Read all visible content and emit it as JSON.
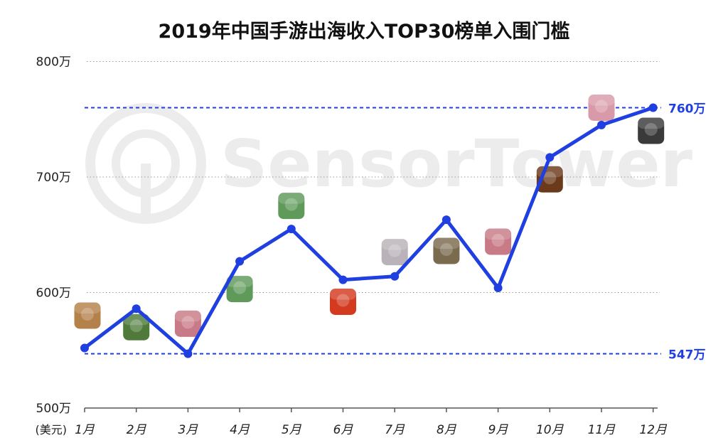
{
  "chart_data": {
    "type": "line",
    "title": "2019年中国手游出海收入TOP30榜单入围门槛",
    "ylabel": "(美元)",
    "categories": [
      "1月",
      "2月",
      "3月",
      "4月",
      "5月",
      "6月",
      "7月",
      "8月",
      "9月",
      "10月",
      "11月",
      "12月"
    ],
    "yticks": [
      {
        "value": 500,
        "label": "500万"
      },
      {
        "value": 600,
        "label": "600万"
      },
      {
        "value": 700,
        "label": "700万"
      },
      {
        "value": 800,
        "label": "800万"
      }
    ],
    "ylim": [
      500,
      800
    ],
    "series": [
      {
        "values": [
          552,
          586,
          547,
          627,
          655,
          611,
          614,
          663,
          604,
          717,
          745,
          760
        ],
        "color": "#1f3fe0"
      }
    ],
    "reference_lines": [
      {
        "value": 760,
        "label": "760万",
        "color": "#1f3fe0"
      },
      {
        "value": 547,
        "label": "547万",
        "color": "#1f3fe0"
      }
    ],
    "grid": true,
    "watermark": "SensorTower",
    "game_icons": [
      {
        "month_index": 0,
        "value": 580,
        "icon": "game-icon-heroes-portrait",
        "color": "#b5814a"
      },
      {
        "month_index": 1,
        "value": 570,
        "icon": "game-icon-army-soldier",
        "color": "#4f7a3a"
      },
      {
        "month_index": 2,
        "value": 573,
        "icon": "game-icon-chapters",
        "color": "#c97a87"
      },
      {
        "month_index": 3,
        "value": 603,
        "icon": "game-icon-summoners-war",
        "color": "#5f9a5a"
      },
      {
        "month_index": 4,
        "value": 675,
        "icon": "game-icon-summoners-war",
        "color": "#5f9a5a"
      },
      {
        "month_index": 5,
        "value": 592,
        "icon": "game-icon-mu-origin",
        "color": "#d33a1f"
      },
      {
        "month_index": 6,
        "value": 635,
        "icon": "game-icon-anime-girl",
        "color": "#b9b2b8"
      },
      {
        "month_index": 7,
        "value": 636,
        "icon": "game-icon-soldier-face",
        "color": "#7a6a4e"
      },
      {
        "month_index": 8,
        "value": 644,
        "icon": "game-icon-chapters",
        "color": "#c97a87"
      },
      {
        "month_index": 9,
        "value": 698,
        "icon": "game-icon-dark-fantasy",
        "color": "#6a3a1a"
      },
      {
        "month_index": 10,
        "value": 760,
        "icon": "game-icon-pink-hair-girl",
        "color": "#d89aa8"
      },
      {
        "month_index": 11,
        "value": 740,
        "icon": "game-icon-silhouette",
        "color": "#3a3a3a"
      }
    ]
  }
}
